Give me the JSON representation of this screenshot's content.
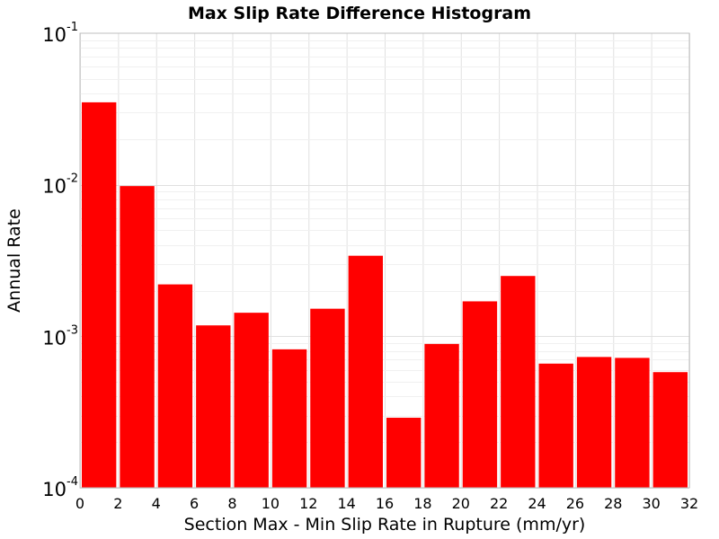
{
  "chart_data": {
    "type": "bar",
    "title": "Max Slip Rate Difference Histogram",
    "xlabel": "Section Max - Min Slip Rate in Rupture (mm/yr)",
    "ylabel": "Annual Rate",
    "xlim": [
      0,
      32
    ],
    "ylim": [
      0.0001,
      0.1
    ],
    "yscale": "log",
    "bin_width": 2,
    "x_ticks": [
      0,
      2,
      4,
      6,
      8,
      10,
      12,
      14,
      16,
      18,
      20,
      22,
      24,
      26,
      28,
      30,
      32
    ],
    "y_ticks": [
      {
        "base": "10",
        "exp": "-4",
        "value": 0.0001
      },
      {
        "base": "10",
        "exp": "-3",
        "value": 0.001
      },
      {
        "base": "10",
        "exp": "-2",
        "value": 0.01
      },
      {
        "base": "10",
        "exp": "-1",
        "value": 0.1
      }
    ],
    "bar_color": "#ff0000",
    "grid": true,
    "bins": [
      {
        "x0": 0,
        "x1": 2,
        "value": 0.035
      },
      {
        "x0": 2,
        "x1": 4,
        "value": 0.0098
      },
      {
        "x0": 4,
        "x1": 6,
        "value": 0.0022
      },
      {
        "x0": 6,
        "x1": 8,
        "value": 0.00118
      },
      {
        "x0": 8,
        "x1": 10,
        "value": 0.00143
      },
      {
        "x0": 10,
        "x1": 12,
        "value": 0.00082
      },
      {
        "x0": 12,
        "x1": 14,
        "value": 0.00152
      },
      {
        "x0": 14,
        "x1": 16,
        "value": 0.0034
      },
      {
        "x0": 16,
        "x1": 18,
        "value": 0.00029
      },
      {
        "x0": 18,
        "x1": 20,
        "value": 0.00089
      },
      {
        "x0": 20,
        "x1": 22,
        "value": 0.0017
      },
      {
        "x0": 22,
        "x1": 24,
        "value": 0.0025
      },
      {
        "x0": 24,
        "x1": 26,
        "value": 0.00066
      },
      {
        "x0": 26,
        "x1": 28,
        "value": 0.00073
      },
      {
        "x0": 28,
        "x1": 30,
        "value": 0.00072
      },
      {
        "x0": 30,
        "x1": 32,
        "value": 0.00058
      }
    ]
  }
}
